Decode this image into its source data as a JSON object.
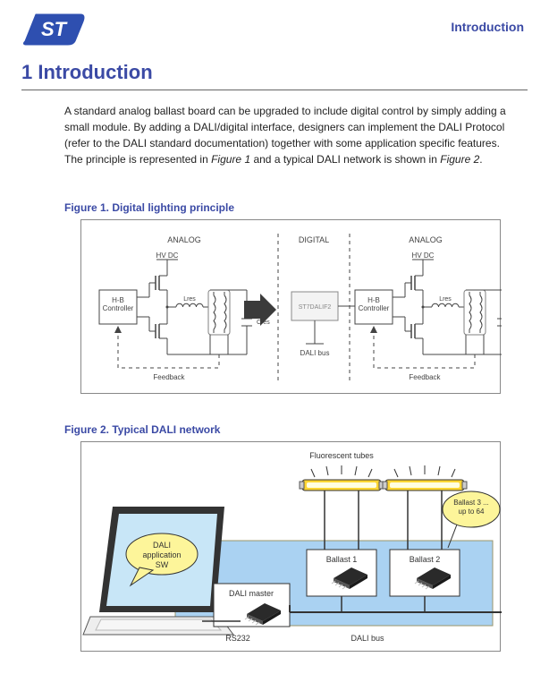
{
  "header_right": "Introduction",
  "title": "1  Introduction",
  "paragraph_html": "A standard analog ballast board can be upgraded to include digital control by simply adding a small module. By adding a DALI/digital interface, designers can implement the DALI Protocol (refer to the DALI standard documentation) together with some application specific features. The principle is represented in <i>Figure 1</i> and a typical DALI network is shown in <i>Figure 2</i>.",
  "fig1": {
    "caption": "Figure 1. Digital lighting principle",
    "label_analog_l": "ANALOG",
    "label_digital": "DIGITAL",
    "label_analog_r": "ANALOG",
    "label_hvdc_l": "HV DC",
    "label_hvdc_r": "HV DC",
    "label_hb_l": "H-B\nController",
    "label_hb_r": "H-B\nController",
    "label_lres_l": "Lres",
    "label_lres_r": "Lres",
    "label_cres_l": "Cres",
    "label_cres_r": "Cres",
    "label_fb_l": "Feedback",
    "label_fb_r": "Feedback",
    "label_chip": "ST7DALIF2",
    "label_bus": "DALI bus",
    "colors": {
      "arrow_fill": "#3b3b3b",
      "lamp_fill": "#ffffff",
      "chip_fill": "#f3f3f3",
      "lamp_stroke": "#808080"
    }
  },
  "fig2": {
    "caption": "Figure 2. Typical DALI network",
    "label_sw": "DALI\napplication\nSW",
    "label_tubes": "Fluorescent tubes",
    "label_master": "DALI master",
    "label_ballast1": "Ballast 1",
    "label_ballast2": "Ballast 2",
    "label_up64": "Ballast 3 ...\nup to 64",
    "label_rs232": "RS232",
    "label_dali_bus": "DALI bus",
    "colors": {
      "net_fill": "#aad2f2",
      "net_stroke": "#9b956b",
      "box_stroke": "#333333",
      "laptop_body": "#eeeeee",
      "laptop_screen": "#c8e6f7",
      "bubble_fill": "#fdf59a",
      "bubble_stroke": "#333333",
      "tube_outer": "#ffd633",
      "tube_inner": "#ffffe0",
      "chip_dark": "#2a2a2a",
      "chip_light": "#bbbbbb"
    }
  }
}
